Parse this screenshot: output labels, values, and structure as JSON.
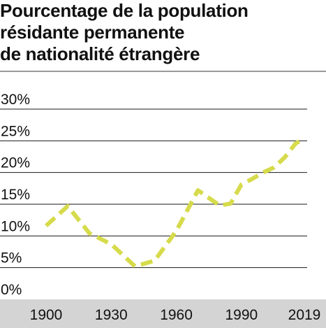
{
  "title_lines": [
    "Pourcentage de la population",
    "résidante permanente",
    "de nationalité étrangère"
  ],
  "chart_data": {
    "type": "line",
    "title": "Pourcentage de la population résidante permanente de nationalité étrangère",
    "xlabel": "",
    "ylabel": "",
    "ylim": [
      0,
      30
    ],
    "xlim": [
      1900,
      2019
    ],
    "yticks": [
      "0%",
      "5%",
      "10%",
      "15%",
      "20%",
      "25%",
      "30%"
    ],
    "ytick_values": [
      0,
      5,
      10,
      15,
      20,
      25,
      30
    ],
    "xticks": [
      "1900",
      "1930",
      "1960",
      "1990",
      "2019"
    ],
    "xtick_values": [
      1900,
      1930,
      1960,
      1990,
      2019
    ],
    "grid": true,
    "line_style": "dashed",
    "line_color": "#d6db4b",
    "axis_band_color": "#d4d4d4",
    "series": [
      {
        "x": [
          1900,
          1910,
          1920,
          1930,
          1941,
          1950,
          1960,
          1970,
          1980,
          1985,
          1990,
          1995,
          2000,
          2005,
          2010,
          2015,
          2019
        ],
        "y": [
          11.6,
          14.7,
          10.4,
          8.7,
          5.2,
          6.1,
          10.8,
          17.2,
          14.8,
          15.1,
          18.1,
          19.0,
          20.0,
          20.8,
          22.4,
          24.6,
          25.3
        ]
      }
    ]
  }
}
